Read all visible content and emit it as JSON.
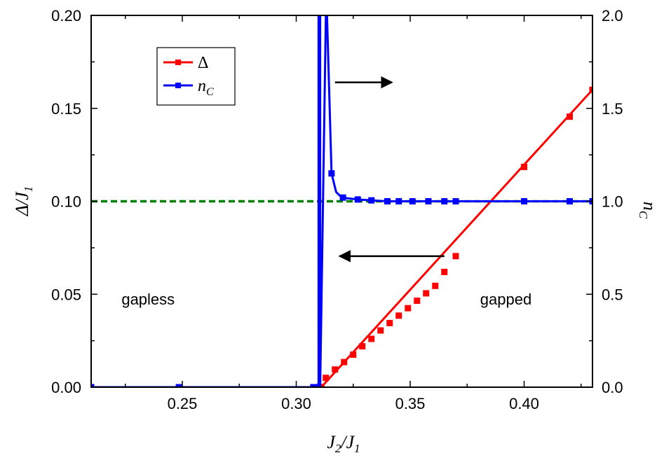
{
  "chart_data": {
    "type": "line",
    "x_label": {
      "main": "J",
      "sub1": "2",
      "sep": "/J",
      "sub2": "1"
    },
    "y_left_label": {
      "main": "Δ/J",
      "sub": "1"
    },
    "y_right_label": {
      "main": "n",
      "sub": "C"
    },
    "xlim": [
      0.21,
      0.43
    ],
    "ylim_left": [
      0,
      0.2
    ],
    "ylim_right": [
      0,
      2.0
    ],
    "x_ticks": [
      "0.25",
      "0.30",
      "0.35",
      "0.40"
    ],
    "x_tick_values": [
      0.25,
      0.3,
      0.35,
      0.4
    ],
    "y_left_ticks": [
      "0.00",
      "0.05",
      "0.10",
      "0.15",
      "0.20"
    ],
    "y_left_tick_values": [
      0,
      0.05,
      0.1,
      0.15,
      0.2
    ],
    "y_right_ticks": [
      "0.0",
      "0.5",
      "1.0",
      "1.5",
      "2.0"
    ],
    "y_right_tick_values": [
      0,
      0.5,
      1.0,
      1.5,
      2.0
    ],
    "series": [
      {
        "name": "Δ",
        "axis": "left",
        "color": "#ff0000",
        "line_x": [
          0.21,
          0.311,
          0.43
        ],
        "line_y": [
          0,
          0,
          0.16
        ],
        "x": [
          0.311,
          0.313,
          0.317,
          0.321,
          0.325,
          0.329,
          0.333,
          0.337,
          0.341,
          0.345,
          0.349,
          0.353,
          0.357,
          0.361,
          0.365,
          0.37,
          0.4,
          0.42,
          0.43
        ],
        "y": [
          0.0,
          0.005,
          0.0095,
          0.0135,
          0.0175,
          0.022,
          0.026,
          0.0305,
          0.0345,
          0.0385,
          0.0425,
          0.0465,
          0.0505,
          0.0545,
          0.062,
          0.0705,
          0.1185,
          0.1455,
          0.16
        ]
      },
      {
        "name": "n",
        "name_sub": "C",
        "axis": "right",
        "color": "#0000ff",
        "line_x": [
          0.21,
          0.3085,
          0.3098,
          0.3098,
          0.3105,
          0.3105,
          0.313,
          0.3135,
          0.3155,
          0.3175,
          0.32,
          0.327,
          0.333,
          0.34,
          0.345,
          0.35,
          0.355,
          0.36,
          0.365,
          0.37,
          0.4,
          0.42,
          0.43
        ],
        "line_y": [
          0,
          0,
          0.02,
          2.0,
          2.0,
          0.0,
          2.0,
          2.0,
          1.15,
          1.05,
          1.02,
          1.01,
          1.005,
          1.0,
          1.0,
          1.0,
          1.0,
          1.0,
          1.0,
          1.0,
          1.0,
          1.0,
          1.0
        ],
        "x": [
          0.21,
          0.2485,
          0.3075,
          0.309,
          0.3155,
          0.3205,
          0.327,
          0.333,
          0.34,
          0.345,
          0.351,
          0.358,
          0.365,
          0.37,
          0.4,
          0.42,
          0.43
        ],
        "y": [
          0,
          0,
          0,
          0,
          1.15,
          1.02,
          1.01,
          1.005,
          1.0,
          1.0,
          1.0,
          1.0,
          1.0,
          1.0,
          1.0,
          1.0,
          1.0
        ]
      }
    ],
    "reference_line": {
      "axis": "left",
      "y": 0.1,
      "color": "#008000",
      "style": "dashed"
    },
    "annotations": [
      {
        "text": "gapless",
        "x": 0.235,
        "y": 0.0475,
        "axis": "left"
      },
      {
        "text": "gapped",
        "x": 0.392,
        "y": 0.0475,
        "axis": "left"
      }
    ],
    "arrows": [
      {
        "direction": "right",
        "axis": "left",
        "y": 0.164,
        "x_from": 0.317,
        "x_to": 0.342
      },
      {
        "direction": "left",
        "axis": "left",
        "y": 0.0705,
        "x_from": 0.365,
        "x_to": 0.319
      }
    ],
    "legend": {
      "placement": "top-left"
    },
    "grid": false
  }
}
